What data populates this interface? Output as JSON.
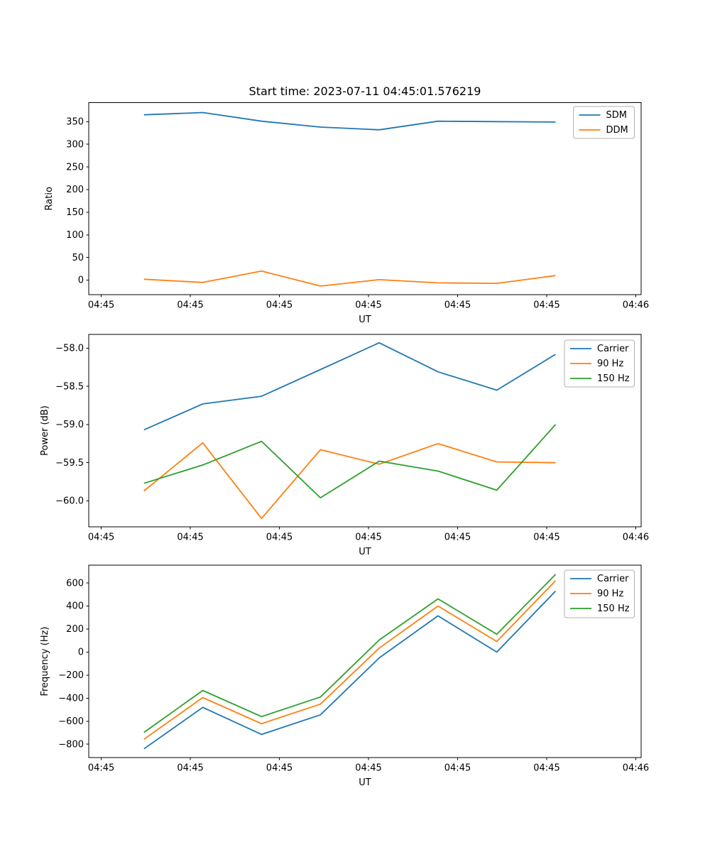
{
  "title": "Start time: 2023-07-11 04:45:01.576219",
  "palette": {
    "blue": "#1f77b4",
    "orange": "#ff7f0e",
    "green": "#2ca02c"
  },
  "x_axis": {
    "label": "UT",
    "tick_seconds": [
      0,
      10,
      20,
      30,
      40,
      50,
      60
    ],
    "tick_labels": [
      "04:45",
      "04:45",
      "04:45",
      "04:45",
      "04:45",
      "04:45",
      "04:46"
    ],
    "xlim_seconds": [
      -1.4,
      60.6
    ],
    "start_label": "04:45",
    "end_label": "04:46"
  },
  "chart_data": [
    {
      "type": "line",
      "ylabel": "Ratio",
      "xlabel": "UT",
      "grid": false,
      "legend_position": "upper right",
      "ylim": [
        -32,
        392
      ],
      "yticks": [
        0,
        50,
        100,
        150,
        200,
        250,
        300,
        350
      ],
      "ytick_labels": [
        "0",
        "50",
        "100",
        "150",
        "200",
        "250",
        "300",
        "350"
      ],
      "x_seconds": [
        4.8,
        11.4,
        18.0,
        24.6,
        31.2,
        37.8,
        44.4,
        51.0
      ],
      "series": [
        {
          "name": "SDM",
          "color": "#1f77b4",
          "values": [
            365,
            370,
            351,
            338,
            332,
            351,
            350,
            349
          ]
        },
        {
          "name": "DDM",
          "color": "#ff7f0e",
          "values": [
            2,
            -5,
            20,
            -13,
            1,
            -6,
            -7,
            10
          ]
        }
      ]
    },
    {
      "type": "line",
      "ylabel": "Power (dB)",
      "xlabel": "UT",
      "grid": false,
      "legend_position": "upper right",
      "ylim": [
        -60.34,
        -57.82
      ],
      "yticks": [
        -58.0,
        -58.5,
        -59.0,
        -59.5,
        -60.0
      ],
      "ytick_labels": [
        "−58.0",
        "−58.5",
        "−59.0",
        "−59.5",
        "−60.0"
      ],
      "x_seconds": [
        4.8,
        11.4,
        18.0,
        24.6,
        31.2,
        37.8,
        44.4,
        51.0
      ],
      "series": [
        {
          "name": "Carrier",
          "color": "#1f77b4",
          "values": [
            -59.07,
            -58.73,
            -58.63,
            -58.28,
            -57.93,
            -58.31,
            -58.55,
            -58.08
          ]
        },
        {
          "name": "90 Hz",
          "color": "#ff7f0e",
          "values": [
            -59.87,
            -59.24,
            -60.23,
            -59.33,
            -59.52,
            -59.25,
            -59.49,
            -59.5
          ]
        },
        {
          "name": "150 Hz",
          "color": "#2ca02c",
          "values": [
            -59.77,
            -59.53,
            -59.22,
            -59.96,
            -59.48,
            -59.61,
            -59.86,
            -59.0
          ]
        }
      ]
    },
    {
      "type": "line",
      "ylabel": "Frequency (Hz)",
      "xlabel": "UT",
      "grid": false,
      "legend_position": "upper right",
      "ylim": [
        -916,
        755
      ],
      "yticks": [
        600,
        400,
        200,
        0,
        -200,
        -400,
        -600,
        -800
      ],
      "ytick_labels": [
        "600",
        "400",
        "200",
        "0",
        "−200",
        "−400",
        "−600",
        "−800"
      ],
      "x_seconds": [
        4.8,
        11.4,
        18.0,
        24.6,
        31.2,
        37.8,
        44.4,
        51.0
      ],
      "series": [
        {
          "name": "Carrier",
          "color": "#1f77b4",
          "values": [
            -840,
            -480,
            -715,
            -545,
            -50,
            315,
            0,
            530
          ]
        },
        {
          "name": "90 Hz",
          "color": "#ff7f0e",
          "values": [
            -757,
            -395,
            -622,
            -452,
            35,
            400,
            92,
            620
          ]
        },
        {
          "name": "150 Hz",
          "color": "#2ca02c",
          "values": [
            -697,
            -333,
            -560,
            -390,
            105,
            462,
            155,
            675
          ]
        }
      ]
    }
  ]
}
